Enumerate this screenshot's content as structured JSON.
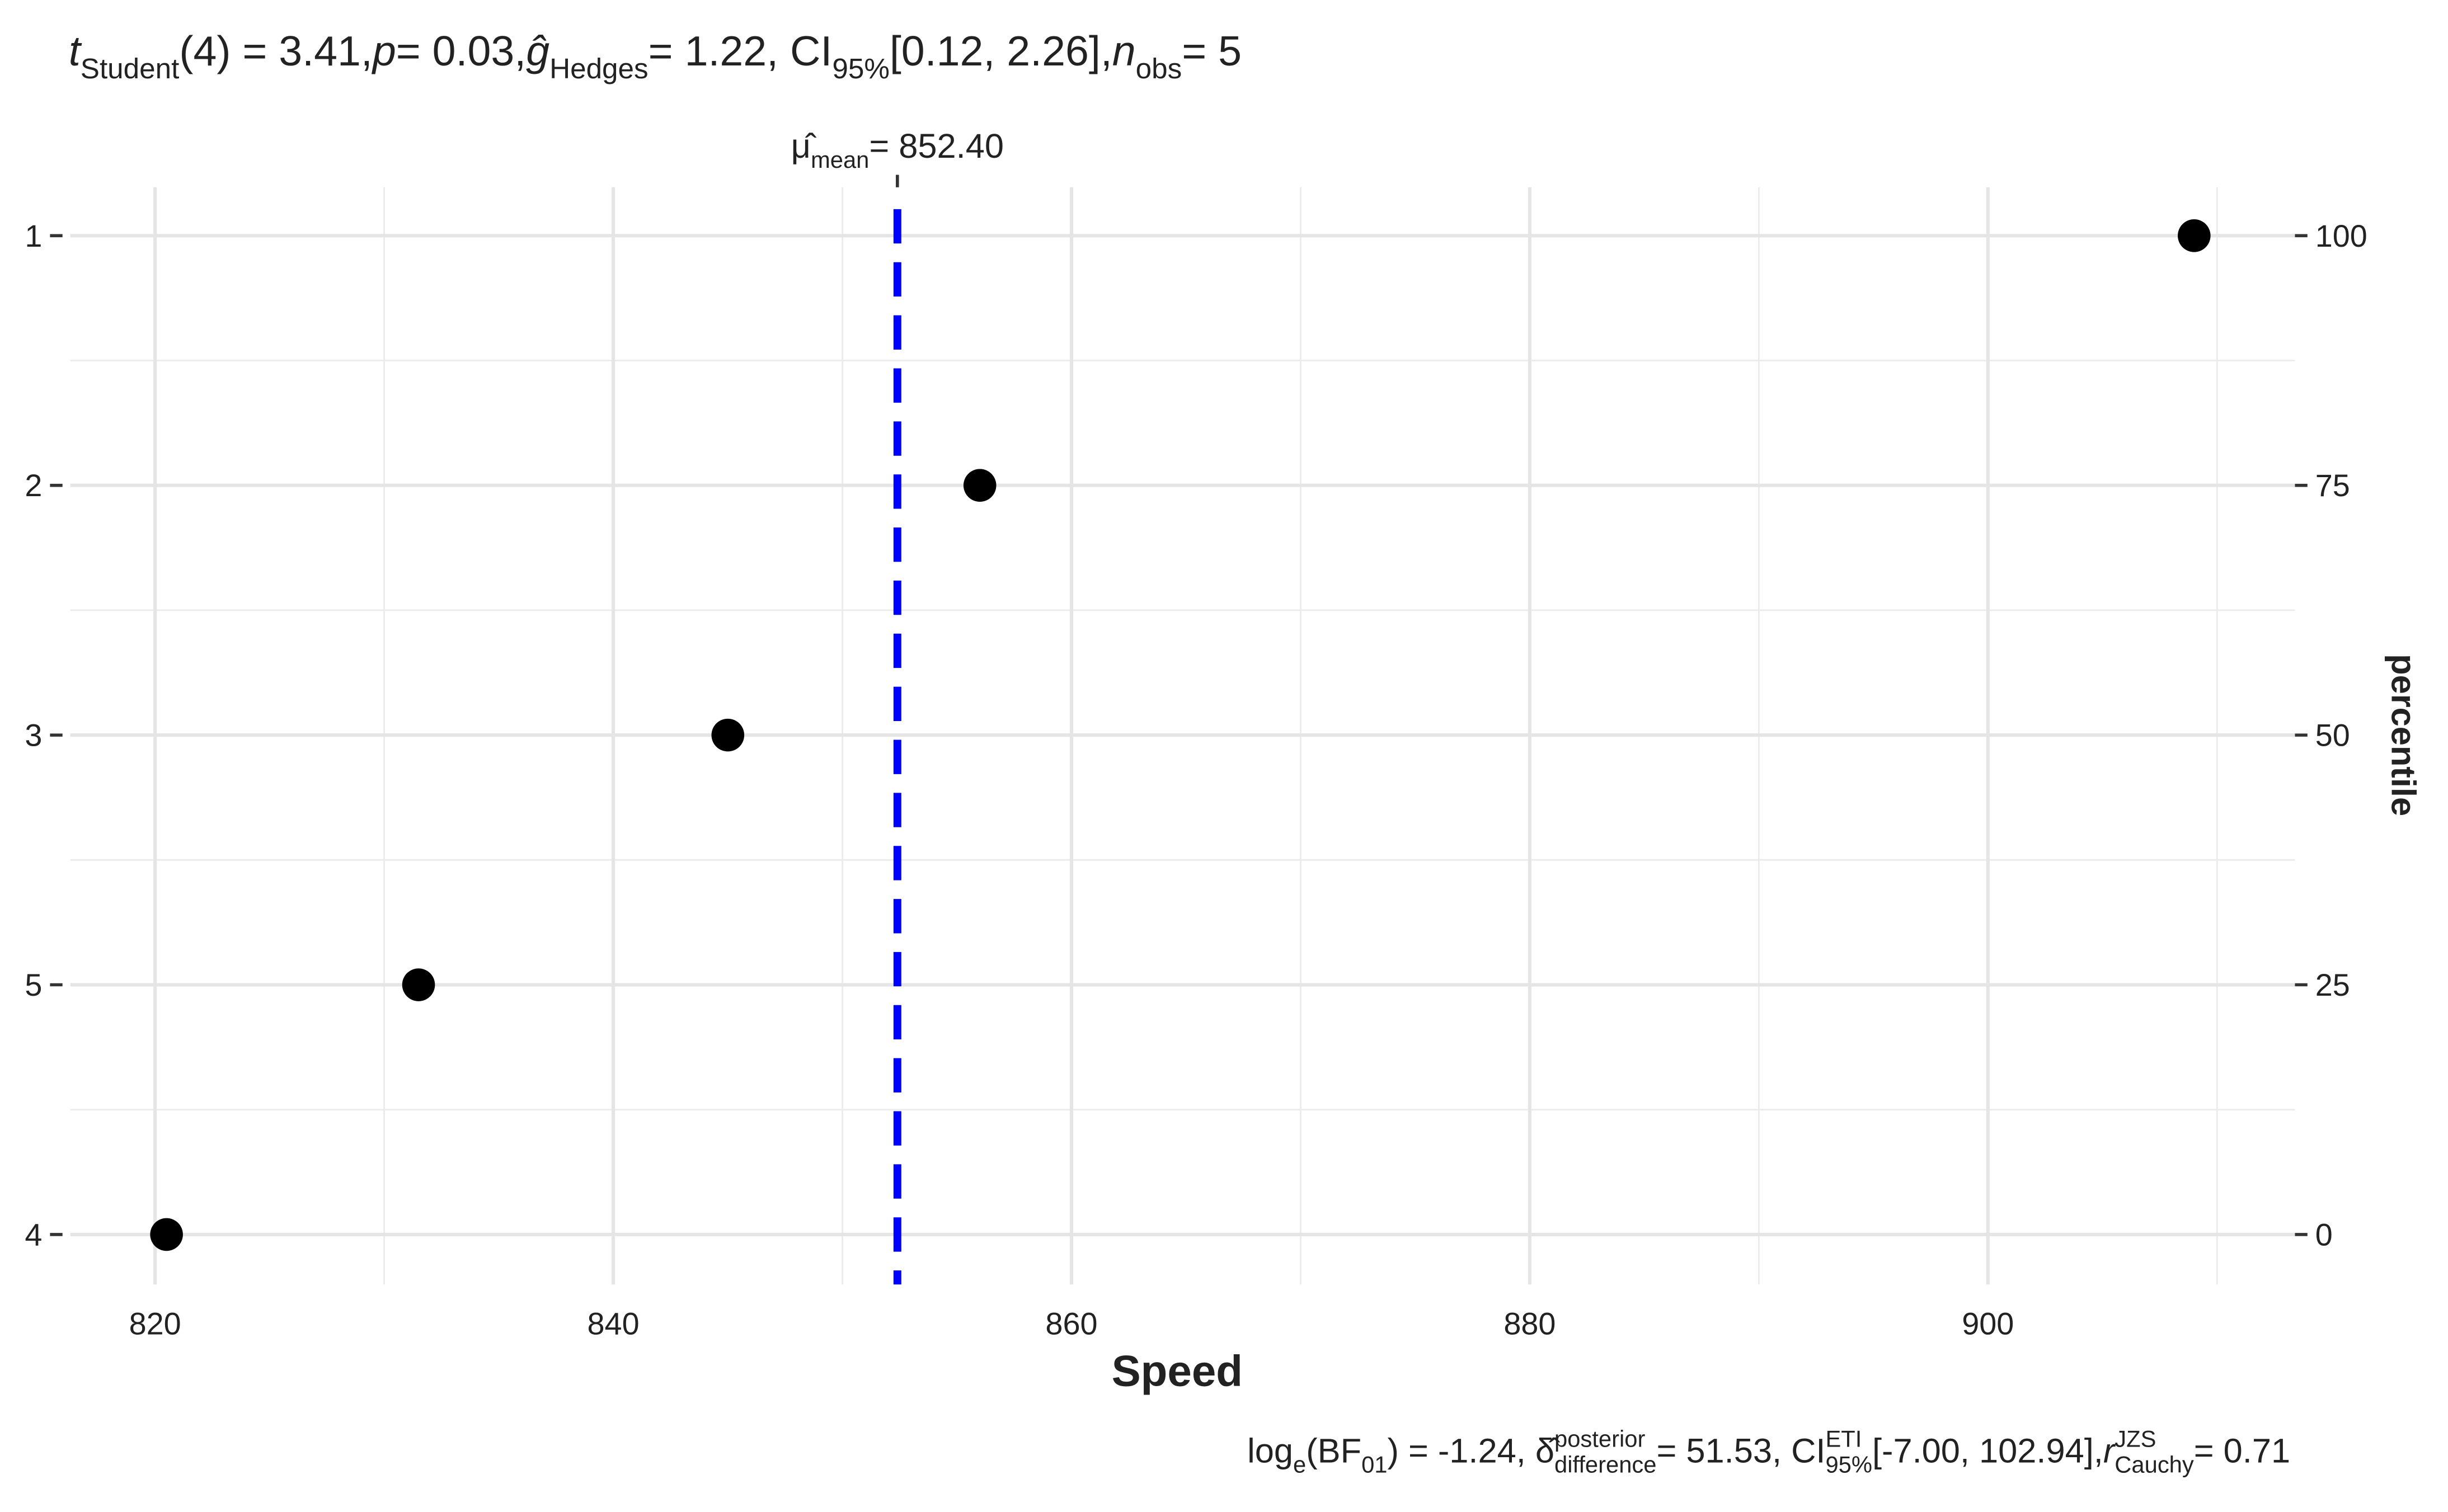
{
  "chart_data": {
    "type": "dot",
    "title": [
      {
        "text": "t",
        "style": "italic"
      },
      {
        "text": "Student",
        "style": "sub"
      },
      {
        "text": "(4) = 3.41, "
      },
      {
        "text": "p",
        "style": "italic"
      },
      {
        "text": " = 0.03, "
      },
      {
        "text": "ĝ",
        "style": "italic"
      },
      {
        "text": "Hedges",
        "style": "sub"
      },
      {
        "text": " = 1.22, CI"
      },
      {
        "text": "95%",
        "style": "sub"
      },
      {
        "text": " [0.12, 2.26], "
      },
      {
        "text": "n",
        "style": "italic"
      },
      {
        "text": "obs",
        "style": "sub"
      },
      {
        "text": " = 5"
      }
    ],
    "caption": [
      {
        "text": "log"
      },
      {
        "text": "e",
        "style": "sub"
      },
      {
        "text": "(BF"
      },
      {
        "text": "01",
        "style": "sub"
      },
      {
        "text": ") = -1.24, δ̂"
      },
      {
        "text": "posterior",
        "style": "sup"
      },
      {
        "text": "difference",
        "style": "sub"
      },
      {
        "text": " = 51.53, CI"
      },
      {
        "text": "ETI",
        "style": "sup"
      },
      {
        "text": "95%",
        "style": "sub"
      },
      {
        "text": " [-7.00, 102.94], "
      },
      {
        "text": "r",
        "style": "italic"
      },
      {
        "text": "JZS",
        "style": "sup"
      },
      {
        "text": "Cauchy",
        "style": "sub"
      },
      {
        "text": " = 0.71"
      }
    ],
    "x_label": "Speed",
    "y2_label": "percentile",
    "categories": [
      "1",
      "2",
      "3",
      "5",
      "4"
    ],
    "values": [
      909,
      856,
      845,
      831.5,
      820.5
    ],
    "percentiles": [
      100,
      75,
      50,
      25,
      0
    ],
    "color": "#000000",
    "mean": 852.4,
    "mean_color": "#0000ff",
    "mean_label": [
      {
        "text": "μ̂"
      },
      {
        "text": "mean",
        "style": "sub"
      },
      {
        "text": " = 852.40"
      }
    ],
    "xlim": [
      816.3,
      913.4
    ],
    "xticks": [
      820,
      840,
      860,
      880,
      900
    ],
    "y2lim": [
      0,
      100
    ],
    "y2ticks": [
      0,
      25,
      50,
      75,
      100
    ],
    "grid": true
  }
}
